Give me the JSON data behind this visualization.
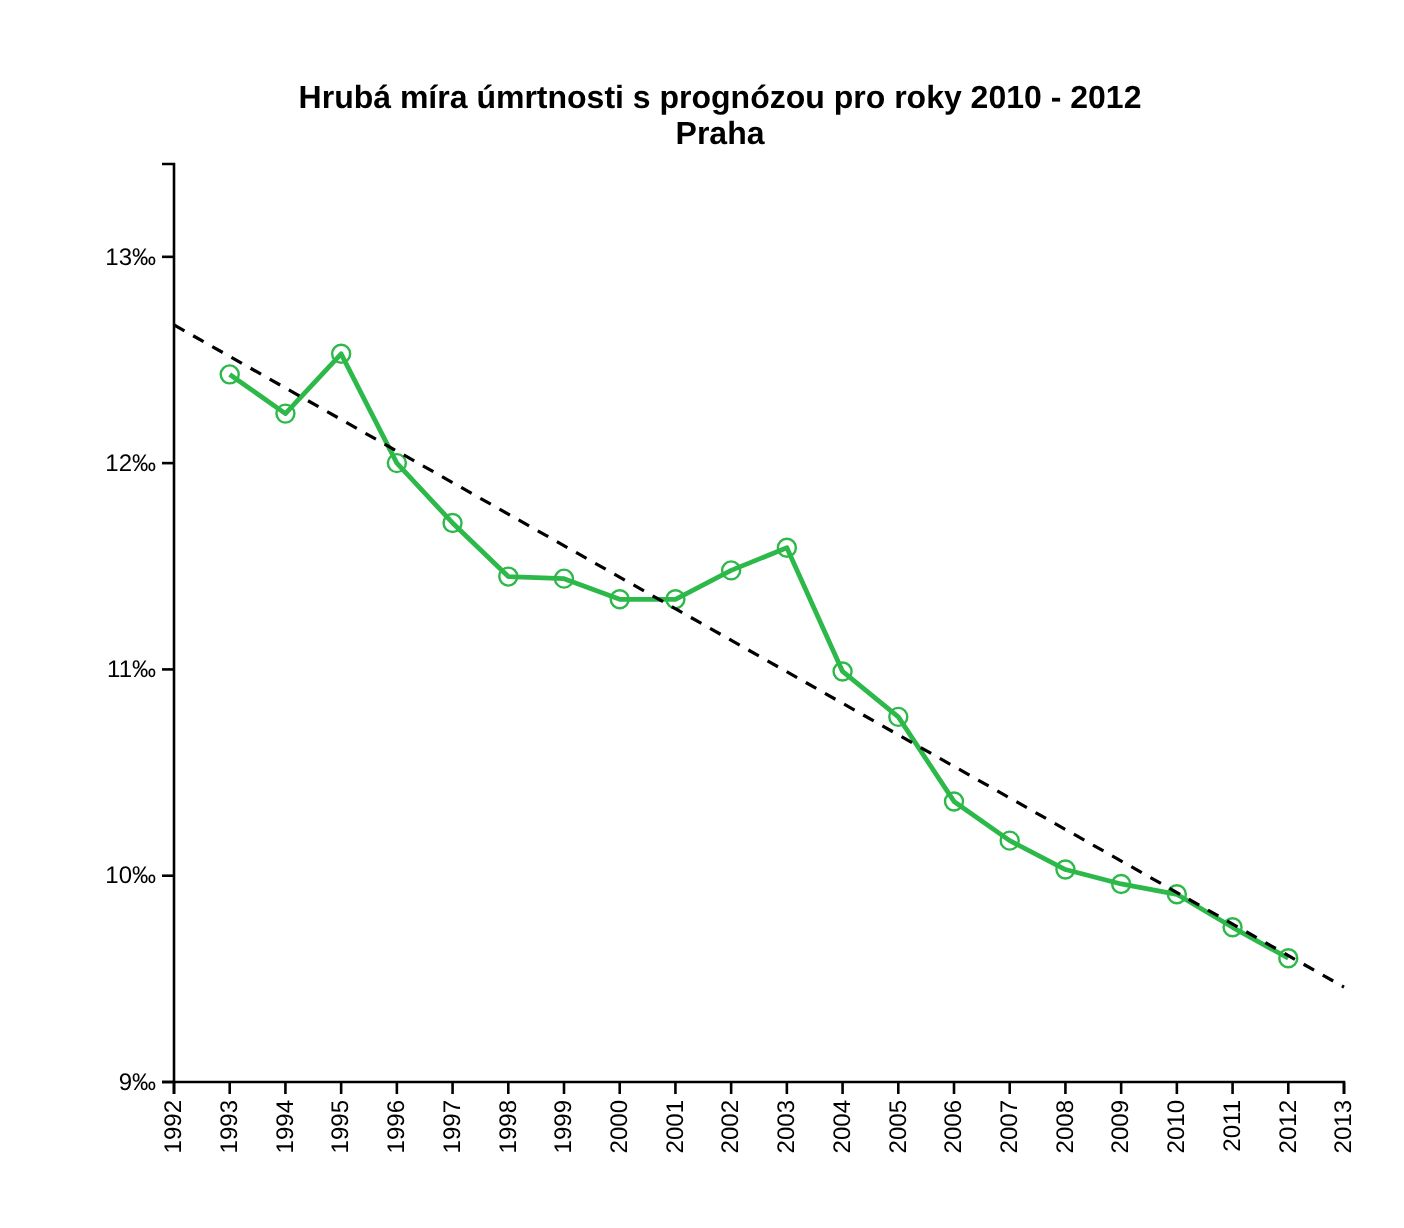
{
  "chart_data": {
    "type": "line",
    "title": "Hrubá míra úmrtnosti s prognózou pro roky 2010 - 2012",
    "subtitle": "Praha",
    "x": [
      1993,
      1994,
      1995,
      1996,
      1997,
      1998,
      1999,
      2000,
      2001,
      2002,
      2003,
      2004,
      2005,
      2006,
      2007,
      2008,
      2009,
      2010,
      2011,
      2012
    ],
    "series": [
      {
        "color": "#2db84a",
        "marker": "circle",
        "line_style": "solid",
        "values": [
          12.43,
          12.24,
          12.53,
          12.0,
          11.71,
          11.45,
          11.44,
          11.34,
          11.34,
          11.48,
          11.59,
          10.99,
          10.77,
          10.36,
          10.17,
          10.03,
          9.96,
          9.91,
          9.75,
          9.6
        ]
      },
      {
        "type": "line",
        "color": "#000000",
        "marker": "none",
        "line_style": "dashed",
        "x": [
          1992,
          2013
        ],
        "values": [
          12.67,
          9.46
        ]
      }
    ],
    "xlim": [
      1992,
      2013
    ],
    "xticks": [
      1992,
      1993,
      1994,
      1995,
      1996,
      1997,
      1998,
      1999,
      2000,
      2001,
      2002,
      2003,
      2004,
      2005,
      2006,
      2007,
      2008,
      2009,
      2010,
      2011,
      2012,
      2013
    ],
    "ylim": [
      9,
      13.45
    ],
    "yticks": [
      {
        "value": 9,
        "label": "9‰"
      },
      {
        "value": 10,
        "label": "10‰"
      },
      {
        "value": 11,
        "label": "11‰"
      },
      {
        "value": 12,
        "label": "12‰"
      },
      {
        "value": 13,
        "label": "13‰"
      }
    ],
    "grid": false
  }
}
